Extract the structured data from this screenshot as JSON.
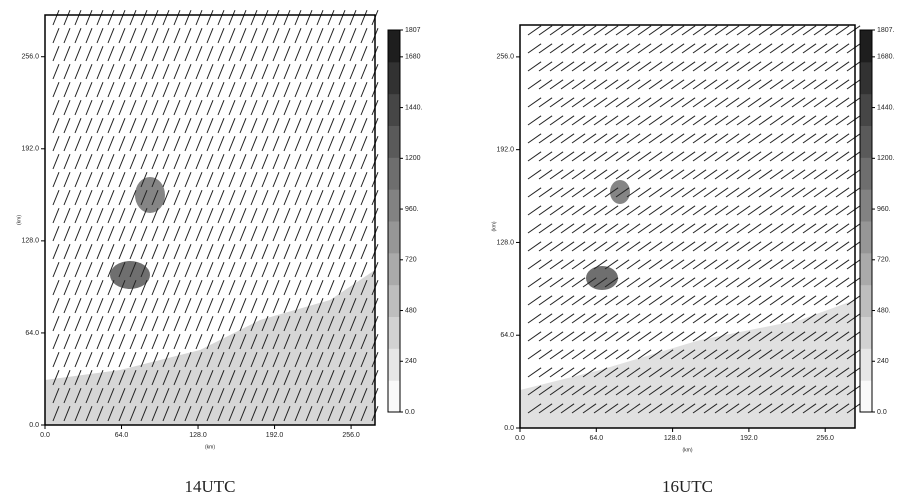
{
  "chart_data": [
    {
      "type": "vector-field",
      "caption": "14UTC",
      "xlabel": "(km)",
      "ylabel": "(km)",
      "xlim": [
        0,
        276
      ],
      "ylim": [
        0,
        285
      ],
      "xticks": [
        {
          "value": 0,
          "label": "0.0"
        },
        {
          "value": 64,
          "label": "64.0"
        },
        {
          "value": 128,
          "label": "128.0"
        },
        {
          "value": 192,
          "label": "192.0"
        },
        {
          "value": 256,
          "label": "256.0"
        }
      ],
      "yticks": [
        {
          "value": 0,
          "label": "0.0"
        },
        {
          "value": 64,
          "label": "64.0"
        },
        {
          "value": 128,
          "label": "128.0"
        },
        {
          "value": 192,
          "label": "192.0"
        },
        {
          "value": 256,
          "label": "256.0"
        }
      ],
      "clim": [
        0,
        1807
      ],
      "cticks": [
        {
          "value": 0,
          "label": "0.0"
        },
        240,
        480,
        720,
        {
          "value": 960,
          "label": "960."
        },
        1200,
        {
          "value": 1440,
          "label": "1440."
        },
        1680,
        1807
      ]
    },
    {
      "type": "vector-field",
      "caption": "16UTC",
      "xlabel": "(km)",
      "ylabel": "(km)",
      "xlim": [
        0,
        281
      ],
      "ylim": [
        0,
        278
      ],
      "xticks": [
        {
          "value": 0,
          "label": "0.0"
        },
        {
          "value": 64,
          "label": "64.0"
        },
        {
          "value": 128,
          "label": "128.0"
        },
        {
          "value": 192,
          "label": "192.0"
        },
        {
          "value": 256,
          "label": "256.0"
        }
      ],
      "yticks": [
        {
          "value": 0,
          "label": "0.0"
        },
        {
          "value": 64,
          "label": "64.0"
        },
        {
          "value": 128,
          "label": "128.0"
        },
        {
          "value": 192,
          "label": "192.0"
        },
        {
          "value": 256,
          "label": "256.0"
        }
      ],
      "clim": [
        0,
        1807
      ],
      "cticks": [
        {
          "value": 0,
          "label": "0.0"
        },
        240,
        {
          "value": 480,
          "label": "480."
        },
        {
          "value": 720,
          "label": "720."
        },
        {
          "value": 960,
          "label": "960."
        },
        {
          "value": 1200,
          "label": "1200."
        },
        {
          "value": 1440,
          "label": "1440."
        },
        {
          "value": 1680,
          "label": "1680."
        },
        {
          "value": 1807,
          "label": "1807."
        }
      ]
    }
  ]
}
